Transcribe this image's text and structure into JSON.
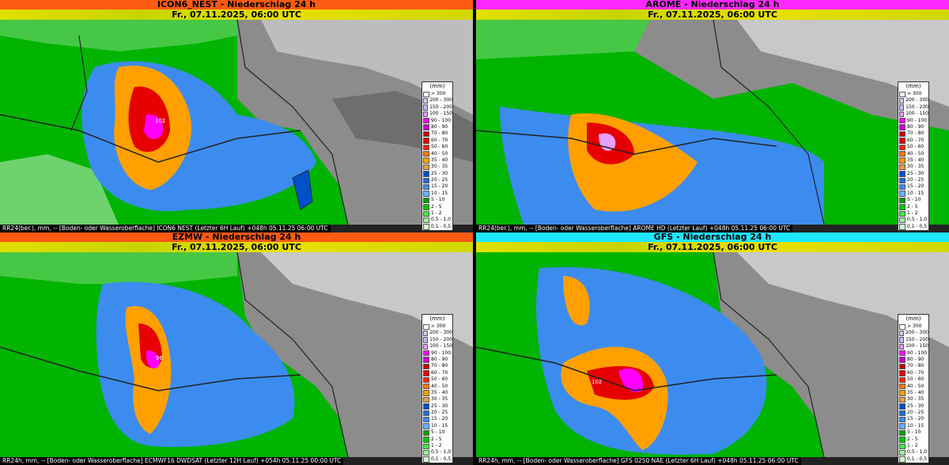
{
  "panels": [
    {
      "title": "ICON6_NEST - Niederschlag 24 h",
      "title_color": "#ff5a14",
      "date": "Fr., 07.11.2025, 06:00 UTC",
      "footer": "RR24(ber.), mm, -- [Boden- oder Wasseroberflache] ICON6 NEST (Letzter  6H Lauf) +048h  05.11.25 06:00 UTC",
      "max_label": "102"
    },
    {
      "title": "AROME - Niederschlag 24 h",
      "title_color": "#ff28ff",
      "date": "Fr., 07.11.2025, 06:00 UTC",
      "footer": "RR24(ber.), mm, -- [Boden- oder Wasseroberflache] AROME HD (Letzter Lauf) +048h  05.11.25 06:00 UTC",
      "max_label": ""
    },
    {
      "title": "EZMW - Niederschlag 24 h",
      "title_color": "#ff5a14",
      "date": "Fr., 07.11.2025, 06:00 UTC",
      "footer": "RR24h, mm, -- [Boden- oder Wasseroberflache] ECMWF16 DWDSAT (Letzter 12H Lauf) +054h  05.11.25 00:00 UTC",
      "max_label": "96"
    },
    {
      "title": "GFS - Niederschlag 24 h",
      "title_color": "#1ee6ff",
      "date": "Fr., 07.11.2025, 06:00 UTC",
      "footer": "RR24h, mm, -- [Boden- oder Wasseroberflache] GFS 0250 NAE (Letzter  6H Lauf) +048h  05.11.25 06:00 UTC",
      "max_label": "102"
    }
  ],
  "legend": {
    "unit": "(mm)",
    "items": [
      {
        "label": "> 300",
        "color": "#ffffff"
      },
      {
        "label": "200 - 300",
        "color": "#d4c8f0"
      },
      {
        "label": "150 - 200",
        "color": "#c8b4ff"
      },
      {
        "label": "100 - 150",
        "color": "#e6a0ff"
      },
      {
        "label": "90 - 100",
        "color": "#ff00ff"
      },
      {
        "label": "80 - 90",
        "color": "#c800c8"
      },
      {
        "label": "70 - 80",
        "color": "#c80000"
      },
      {
        "label": "60 - 70",
        "color": "#e60000"
      },
      {
        "label": "50 - 60",
        "color": "#ff2800"
      },
      {
        "label": "40 - 50",
        "color": "#ff7800"
      },
      {
        "label": "35 - 40",
        "color": "#ffa000"
      },
      {
        "label": "30 - 35",
        "color": "#e6a046"
      },
      {
        "label": "25 - 30",
        "color": "#0050c8"
      },
      {
        "label": "20 - 25",
        "color": "#1e6edc"
      },
      {
        "label": "15 - 20",
        "color": "#3c8cf0"
      },
      {
        "label": "10 - 15",
        "color": "#64b4ff"
      },
      {
        "label": "5 - 10",
        "color": "#00a000"
      },
      {
        "label": "2 - 5",
        "color": "#00c800"
      },
      {
        "label": "1 - 2",
        "color": "#46e646"
      },
      {
        "label": "0,5 - 1,0",
        "color": "#a0f0a0"
      },
      {
        "label": "0,1 - 0,5",
        "color": "#d2f5d2"
      }
    ]
  }
}
